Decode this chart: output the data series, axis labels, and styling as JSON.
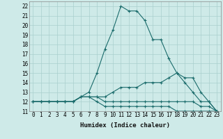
{
  "xlabel": "Humidex (Indice chaleur)",
  "background_color": "#ceeae8",
  "grid_color": "#aacfcd",
  "line_color": "#1a6b6b",
  "x_values": [
    0,
    1,
    2,
    3,
    4,
    5,
    6,
    7,
    8,
    9,
    10,
    11,
    12,
    13,
    14,
    15,
    16,
    17,
    18,
    19,
    20,
    21,
    22,
    23
  ],
  "series": [
    [
      12,
      12,
      12,
      12,
      12,
      12,
      12.5,
      13,
      15,
      17.5,
      19.5,
      22,
      21.5,
      21.5,
      20.5,
      18.5,
      18.5,
      16.5,
      15,
      14.5,
      14.5,
      13,
      12,
      11
    ],
    [
      12,
      12,
      12,
      12,
      12,
      12,
      12.5,
      12.5,
      12.5,
      12.5,
      13,
      13.5,
      13.5,
      13.5,
      14,
      14,
      14,
      14.5,
      15,
      14,
      13,
      12,
      12,
      11
    ],
    [
      12,
      12,
      12,
      12,
      12,
      12,
      12.5,
      12.5,
      12.5,
      12,
      12,
      12,
      12,
      12,
      12,
      12,
      12,
      12,
      12,
      12,
      12,
      11.5,
      11.5,
      11
    ],
    [
      12,
      12,
      12,
      12,
      12,
      12,
      12.5,
      12.5,
      12,
      11.5,
      11.5,
      11.5,
      11.5,
      11.5,
      11.5,
      11.5,
      11.5,
      11.5,
      11,
      11,
      11,
      11,
      11,
      11
    ]
  ],
  "ylim": [
    11,
    22.5
  ],
  "xlim": [
    -0.5,
    23.5
  ],
  "yticks": [
    11,
    12,
    13,
    14,
    15,
    16,
    17,
    18,
    19,
    20,
    21,
    22
  ],
  "xticks": [
    0,
    1,
    2,
    3,
    4,
    5,
    6,
    7,
    8,
    9,
    10,
    11,
    12,
    13,
    14,
    15,
    16,
    17,
    18,
    19,
    20,
    21,
    22,
    23
  ],
  "marker": "+",
  "markersize": 3,
  "linewidth": 0.8,
  "xlabel_fontsize": 6.5,
  "tick_fontsize": 5.5
}
